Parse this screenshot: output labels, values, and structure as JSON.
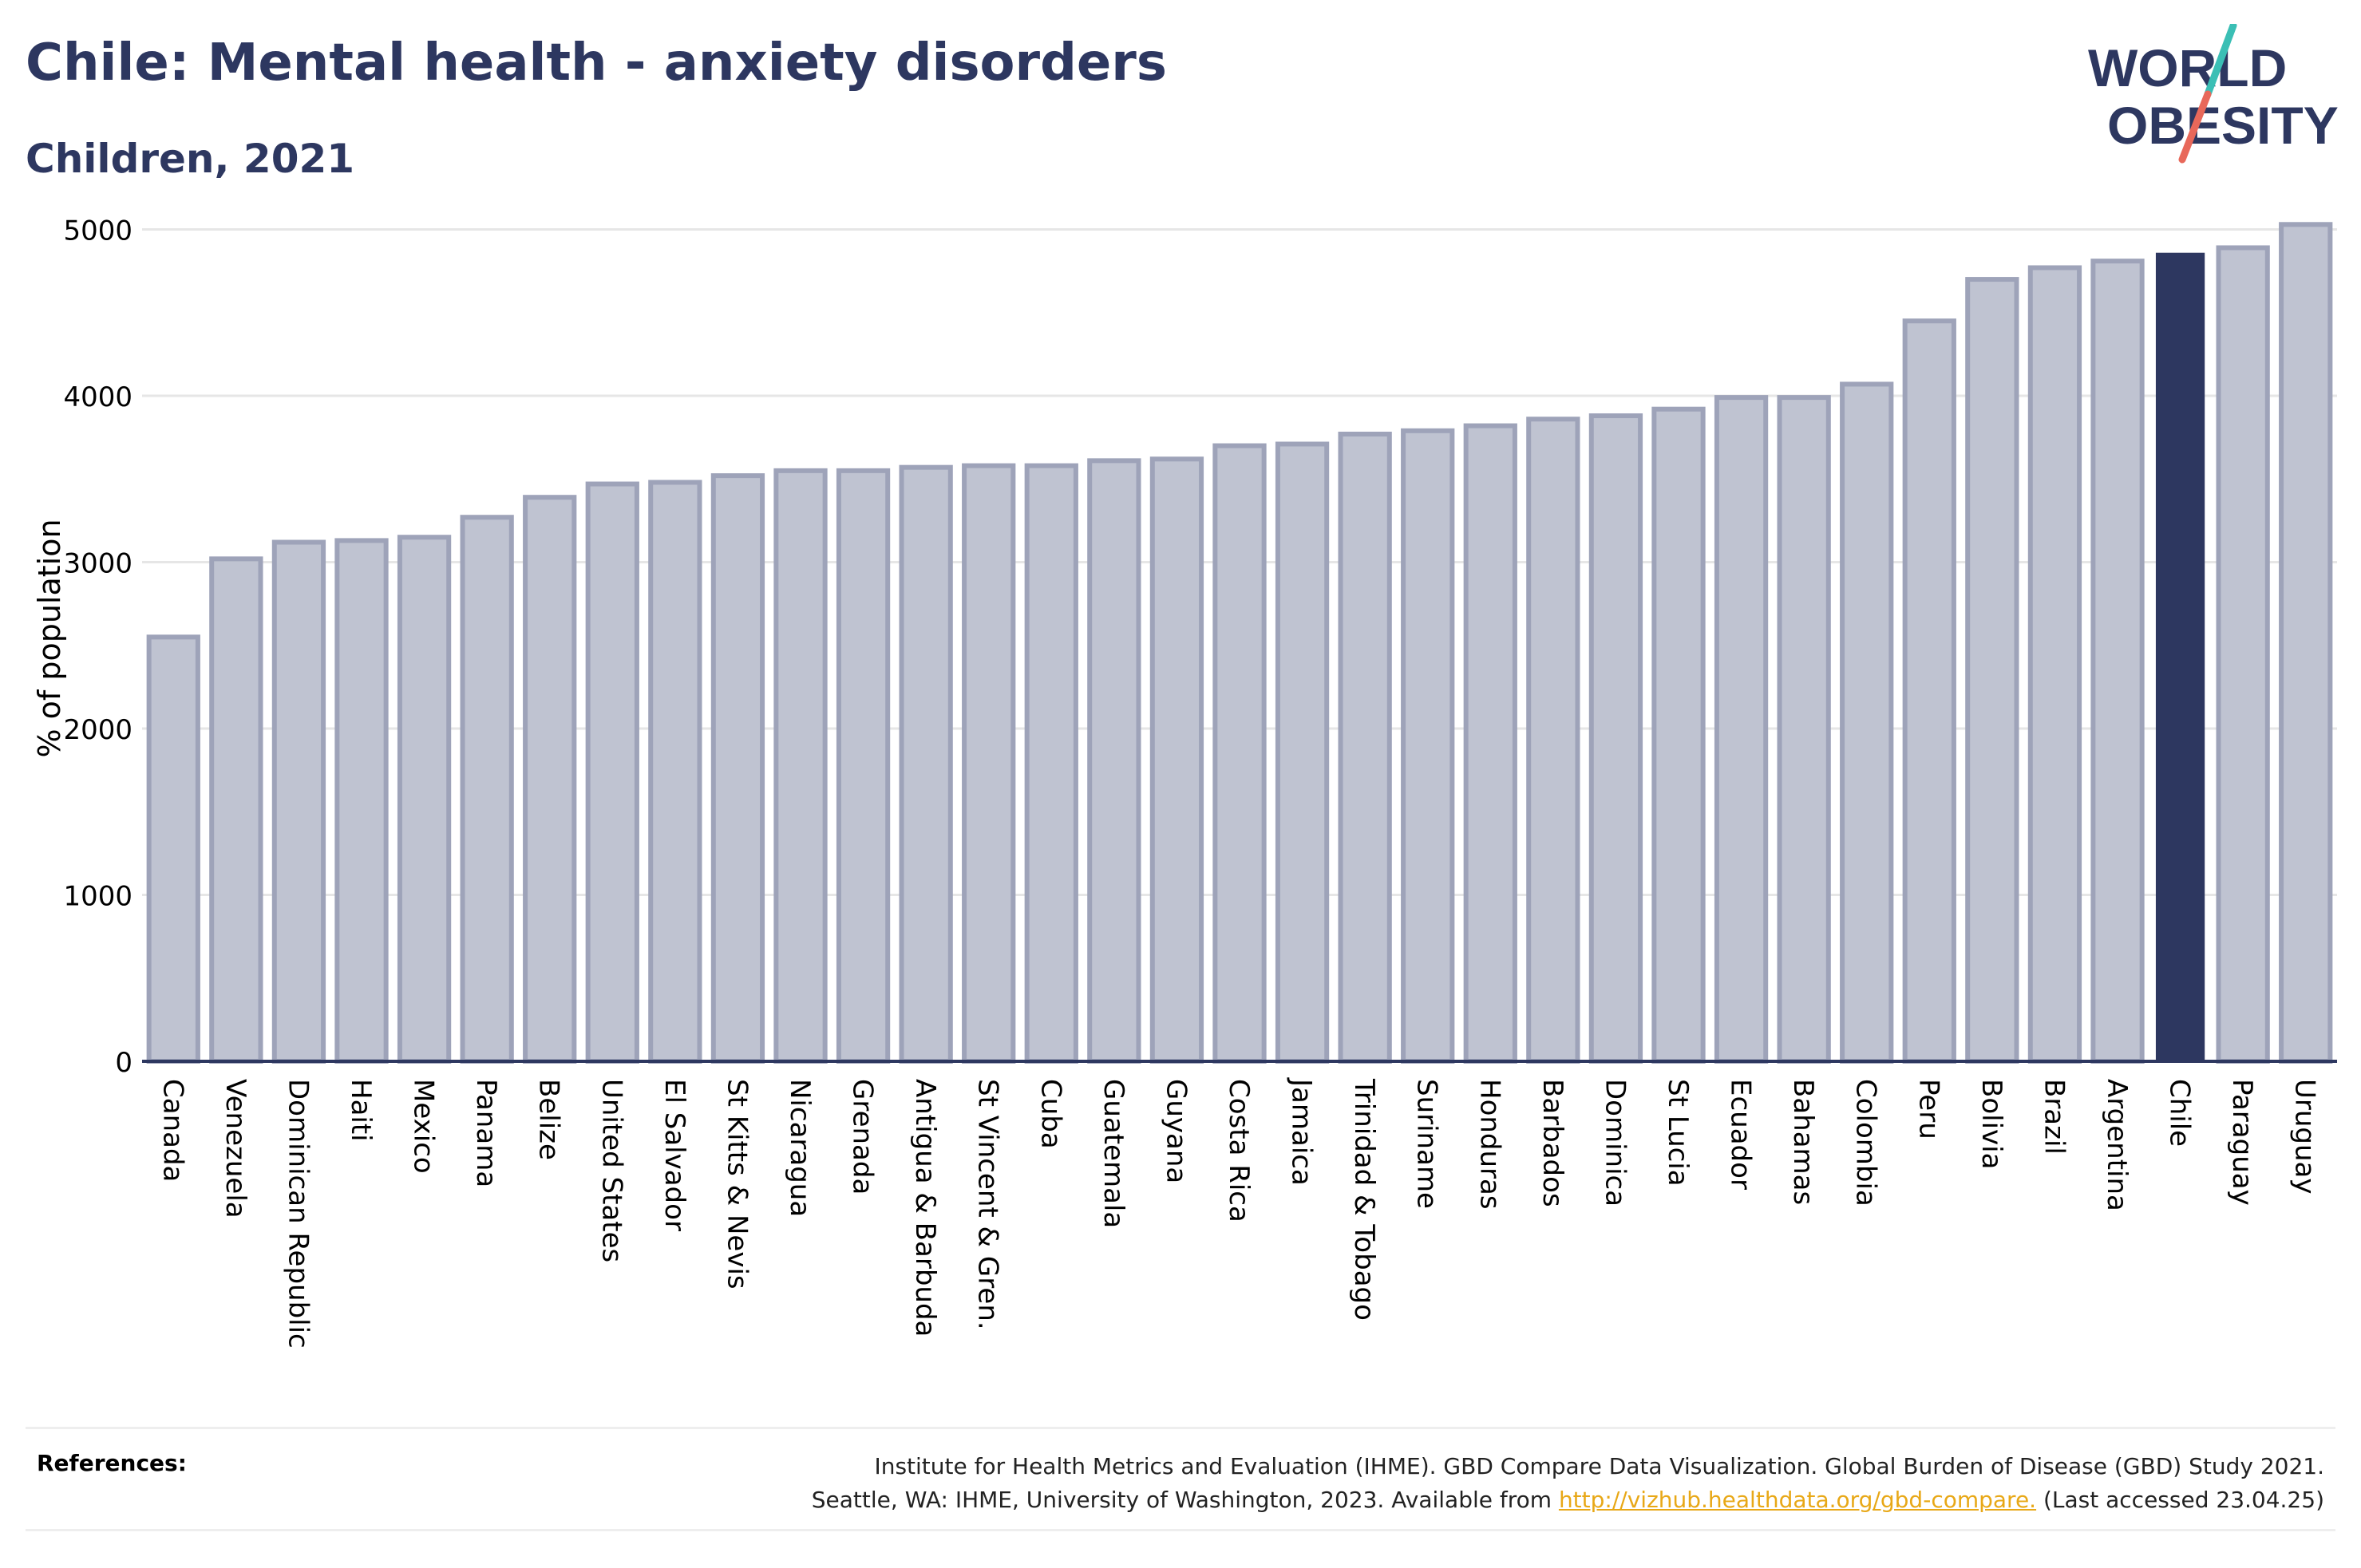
{
  "header": {
    "title": "Chile: Mental health - anxiety disorders",
    "subtitle": "Children, 2021"
  },
  "logo": {
    "line1": "WORLD",
    "line2": "OBESITY",
    "colors": {
      "text": "#2d3760",
      "slash_teal": "#3bbfb5",
      "slash_coral": "#e8685a"
    }
  },
  "colors": {
    "bar_fill": "#bfc3d1",
    "bar_stroke": "#9ea3b9",
    "highlight": "#2d3760",
    "grid": "#e6e6e6",
    "axis": "#2d3760"
  },
  "chart_data": {
    "type": "bar",
    "title": "Chile: Mental health - anxiety disorders",
    "subtitle": "Children, 2021",
    "xlabel": "",
    "ylabel": "% of population",
    "ylim": [
      0,
      5000
    ],
    "yticks": [
      0,
      1000,
      2000,
      3000,
      4000,
      5000
    ],
    "grid": true,
    "highlight": "Chile",
    "categories": [
      "Canada",
      "Venezuela",
      "Dominican Republic",
      "Haiti",
      "Mexico",
      "Panama",
      "Belize",
      "United States",
      "El Salvador",
      "St Kitts & Nevis",
      "Nicaragua",
      "Grenada",
      "Antigua & Barbuda",
      "St Vincent & Gren.",
      "Cuba",
      "Guatemala",
      "Guyana",
      "Costa Rica",
      "Jamaica",
      "Trinidad & Tobago",
      "Suriname",
      "Honduras",
      "Barbados",
      "Dominica",
      "St Lucia",
      "Ecuador",
      "Bahamas",
      "Colombia",
      "Peru",
      "Bolivia",
      "Brazil",
      "Argentina",
      "Chile",
      "Paraguay",
      "Uruguay"
    ],
    "values": [
      2550,
      3020,
      3120,
      3130,
      3150,
      3270,
      3390,
      3470,
      3480,
      3520,
      3550,
      3550,
      3570,
      3580,
      3580,
      3610,
      3620,
      3700,
      3710,
      3770,
      3790,
      3820,
      3860,
      3880,
      3920,
      3990,
      3990,
      4070,
      4450,
      4700,
      4770,
      4810,
      4860,
      4890,
      5030
    ]
  },
  "references": {
    "label": "References:",
    "line1": "Institute for Health Metrics and Evaluation (IHME). GBD Compare Data Visualization. Global Burden of Disease (GBD) Study 2021.",
    "line2_prefix": "Seattle, WA: IHME, University of Washington, 2023. Available from ",
    "link": "http://vizhub.healthdata.org/gbd-compare.",
    "line2_suffix": " (Last accessed 23.04.25)"
  }
}
